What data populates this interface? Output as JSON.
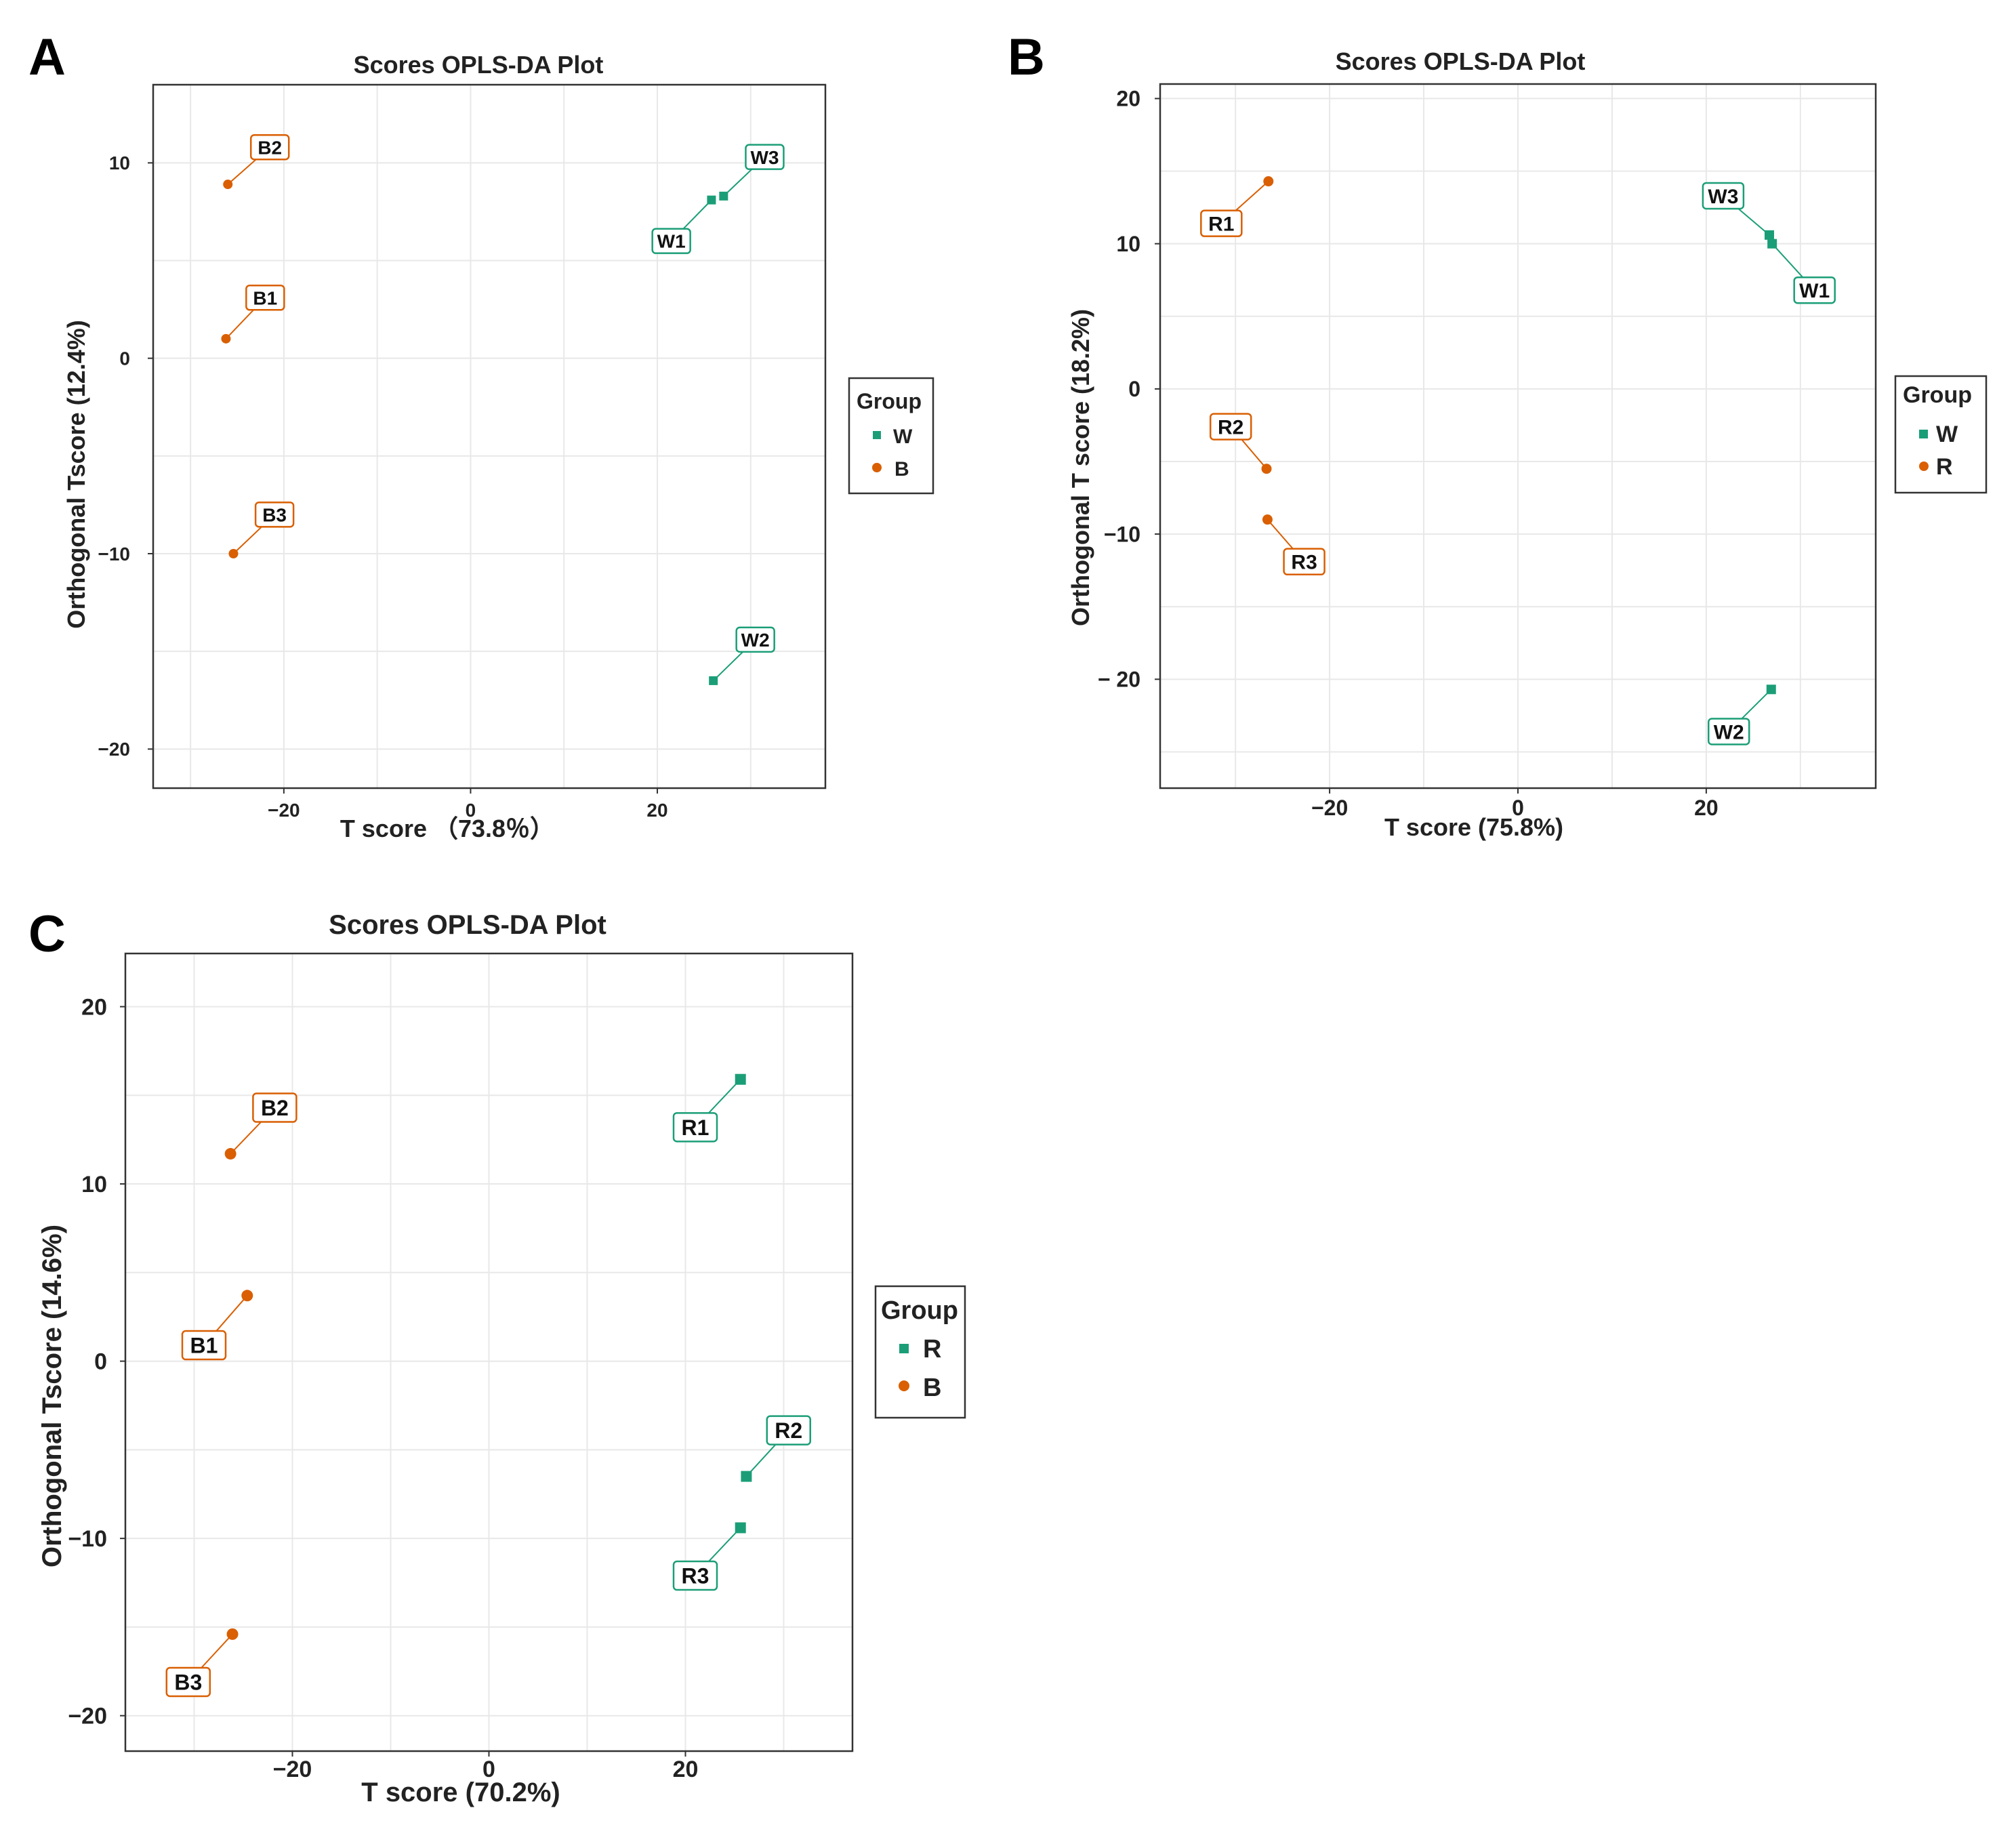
{
  "chart_data": [
    {
      "type": "scatter",
      "panel_letter": "A",
      "title": "Scores  OPLS-DA Plot",
      "xlabel": "T score （73.8％）",
      "ylabel": "Orthogonal Tscore (12.4%)",
      "xlim": [
        -34,
        38
      ],
      "ylim": [
        -22,
        14
      ],
      "xticks": [
        -20,
        0,
        20
      ],
      "yticks": [
        10,
        0,
        -10,
        -20
      ],
      "xtick_labels": [
        "−20",
        "0",
        "20"
      ],
      "ytick_labels": [
        "10",
        "0",
        "−10",
        "−20"
      ],
      "grid": true,
      "legend_title": "Group",
      "legend": [
        {
          "label": "W",
          "color": "#1b9e77",
          "marker": "square"
        },
        {
          "label": "B",
          "color": "#d95f02",
          "marker": "circle"
        }
      ],
      "points": [
        {
          "label": "W1",
          "group": "W",
          "x": 25.8,
          "y": 8.1,
          "lx": 21.5,
          "ly": 6.0
        },
        {
          "label": "W3",
          "group": "W",
          "x": 27.1,
          "y": 8.3,
          "lx": 31.5,
          "ly": 10.3
        },
        {
          "label": "W2",
          "group": "W",
          "x": 26.0,
          "y": -16.5,
          "lx": 30.5,
          "ly": -14.4
        },
        {
          "label": "B2",
          "group": "B",
          "x": -26.0,
          "y": 8.9,
          "lx": -21.5,
          "ly": 10.8
        },
        {
          "label": "B1",
          "group": "B",
          "x": -26.2,
          "y": 1.0,
          "lx": -22.0,
          "ly": 3.1
        },
        {
          "label": "B3",
          "group": "B",
          "x": -25.4,
          "y": -10.0,
          "lx": -21.0,
          "ly": -8.0
        }
      ]
    },
    {
      "type": "scatter",
      "panel_letter": "B",
      "title": "Scores OPLS-DA Plot",
      "xlabel": "T score  (75.8%)",
      "ylabel": "Orthogonal T score  (18.2%)",
      "xlim": [
        -38,
        38
      ],
      "ylim": [
        -27.5,
        21
      ],
      "xticks": [
        -20,
        0,
        20
      ],
      "yticks": [
        20,
        10,
        0,
        -10,
        -20
      ],
      "xtick_labels": [
        "−20",
        "0",
        "20"
      ],
      "ytick_labels": [
        "20",
        "10",
        "0",
        "−10",
        "− 20"
      ],
      "grid": true,
      "legend_title": "Group",
      "legend": [
        {
          "label": "W",
          "color": "#1b9e77",
          "marker": "square"
        },
        {
          "label": "R",
          "color": "#d95f02",
          "marker": "circle"
        }
      ],
      "points": [
        {
          "label": "R1",
          "group": "R",
          "x": -26.5,
          "y": 14.3,
          "lx": -31.5,
          "ly": 11.4
        },
        {
          "label": "R2",
          "group": "R",
          "x": -26.7,
          "y": -5.5,
          "lx": -30.5,
          "ly": -2.6
        },
        {
          "label": "R3",
          "group": "R",
          "x": -26.6,
          "y": -9.0,
          "lx": -22.7,
          "ly": -11.9
        },
        {
          "label": "W3",
          "group": "W",
          "x": 26.7,
          "y": 10.6,
          "lx": 21.8,
          "ly": 13.3
        },
        {
          "label": "W1",
          "group": "W",
          "x": 27.0,
          "y": 10.0,
          "lx": 31.5,
          "ly": 6.8
        },
        {
          "label": "W2",
          "group": "W",
          "x": 26.9,
          "y": -20.7,
          "lx": 22.4,
          "ly": -23.6
        }
      ]
    },
    {
      "type": "scatter",
      "panel_letter": "C",
      "title": "Scores OPLS-DA Plot",
      "xlabel": "T score  (70.2%)",
      "ylabel": "Orthogonal Tscore  (14.6%)",
      "xlim": [
        -37,
        37
      ],
      "ylim": [
        -22,
        23
      ],
      "xticks": [
        -20,
        0,
        20
      ],
      "yticks": [
        20,
        10,
        0,
        -10,
        -20
      ],
      "xtick_labels": [
        "−20",
        "0",
        "20"
      ],
      "ytick_labels": [
        "20",
        "10",
        "0",
        "−10",
        "−20"
      ],
      "grid": true,
      "legend_title": "Group",
      "legend": [
        {
          "label": "R",
          "color": "#1b9e77",
          "marker": "square"
        },
        {
          "label": "B",
          "color": "#d95f02",
          "marker": "circle"
        }
      ],
      "points": [
        {
          "label": "B2",
          "group": "B",
          "x": -26.3,
          "y": 11.7,
          "lx": -21.8,
          "ly": 14.3
        },
        {
          "label": "B1",
          "group": "B",
          "x": -24.6,
          "y": 3.7,
          "lx": -29.0,
          "ly": 0.9
        },
        {
          "label": "B3",
          "group": "B",
          "x": -26.1,
          "y": -15.4,
          "lx": -30.6,
          "ly": -18.1
        },
        {
          "label": "R1",
          "group": "R",
          "x": 25.6,
          "y": 15.9,
          "lx": 21.0,
          "ly": 13.2
        },
        {
          "label": "R2",
          "group": "R",
          "x": 26.2,
          "y": -6.5,
          "lx": 30.5,
          "ly": -3.9
        },
        {
          "label": "R3",
          "group": "R",
          "x": 25.6,
          "y": -9.4,
          "lx": 21.0,
          "ly": -12.1
        }
      ]
    }
  ]
}
